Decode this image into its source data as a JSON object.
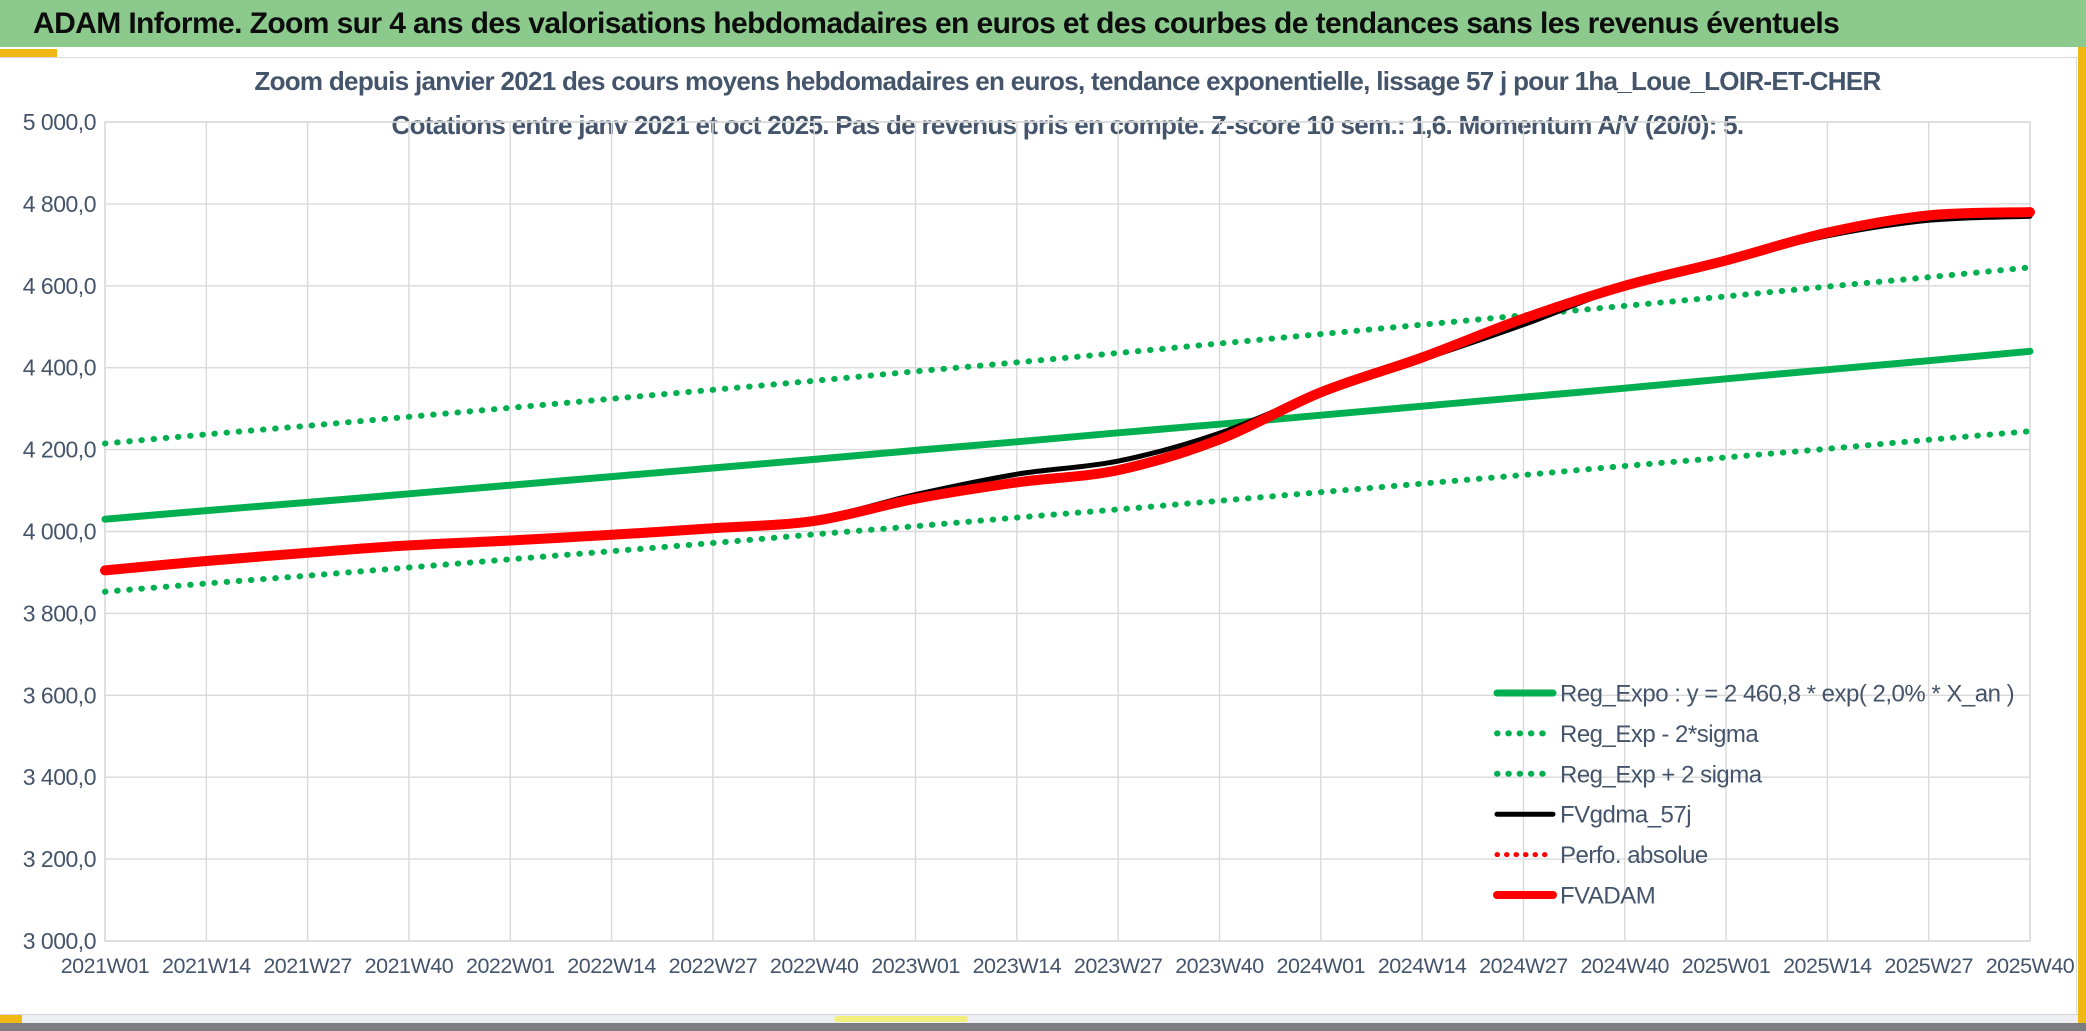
{
  "header": {
    "title": "ADAM Informe. Zoom sur 4 ans des valorisations hebdomadaires en euros et des courbes de tendances sans les revenus éventuels"
  },
  "colors": {
    "header_bg": "#8CC98C",
    "gold": "#EFB815",
    "yellow": "#F3EF7E",
    "text": "#44546A",
    "grid": "#D9D9D9",
    "green": "#00B050",
    "red": "#FF0000",
    "black": "#000000"
  },
  "chart_data": {
    "type": "line",
    "title": "Zoom depuis janvier 2021 des cours moyens hebdomadaires en euros, tendance exponentielle, lissage 57 j pour 1ha_Loue_LOIR-ET-CHER",
    "subtitle": "Cotations entre janv 2021 et oct 2025. Pas de revenus pris en compte. Z-score 10 sem.: 1,6. Momentum A/V (20/0): 5.",
    "xlabel": "",
    "ylabel": "",
    "ylim": [
      3000,
      5000
    ],
    "grid": true,
    "legend_position": "inside-lower-right",
    "y_ticks": [
      "5 000,0",
      "4 800,0",
      "4 600,0",
      "4 400,0",
      "4 200,0",
      "4 000,0",
      "3 800,0",
      "3 600,0",
      "3 400,0",
      "3 200,0",
      "3 000,0"
    ],
    "x_categories": [
      "2021W01",
      "2021W14",
      "2021W27",
      "2021W40",
      "2022W01",
      "2022W14",
      "2022W27",
      "2022W40",
      "2023W01",
      "2023W14",
      "2023W27",
      "2023W40",
      "2024W01",
      "2024W14",
      "2024W27",
      "2024W40",
      "2025W01",
      "2025W14",
      "2025W27",
      "2025W40"
    ],
    "series": [
      {
        "name": "Reg_Expo : y = 2 460,8 * exp( 2,0% *  X_an )",
        "color": "#00B050",
        "style": "solid",
        "width": 7,
        "values": [
          4030,
          4051,
          4071,
          4092,
          4113,
          4134,
          4155,
          4176,
          4198,
          4219,
          4241,
          4262,
          4284,
          4306,
          4328,
          4350,
          4373,
          4395,
          4417,
          4440
        ]
      },
      {
        "name": "Reg_Exp - 2*sigma",
        "color": "#00B050",
        "style": "dotted",
        "width": 6,
        "values": [
          3853,
          3873,
          3892,
          3912,
          3932,
          3952,
          3972,
          3993,
          4013,
          4034,
          4054,
          4075,
          4096,
          4117,
          4138,
          4160,
          4181,
          4202,
          4224,
          4245
        ]
      },
      {
        "name": "Reg_Exp + 2 sigma",
        "color": "#00B050",
        "style": "dotted",
        "width": 6,
        "values": [
          4215,
          4237,
          4258,
          4280,
          4302,
          4324,
          4346,
          4368,
          4391,
          4413,
          4436,
          4459,
          4482,
          4505,
          4528,
          4551,
          4574,
          4598,
          4621,
          4645
        ]
      },
      {
        "name": "FVgdma_57j",
        "color": "#000000",
        "style": "solid",
        "width": 5,
        "values": [
          3905,
          3928,
          3948,
          3966,
          3978,
          3992,
          4010,
          4030,
          4090,
          4140,
          4172,
          4240,
          4340,
          4420,
          4505,
          4598,
          4660,
          4722,
          4760,
          4770
        ]
      },
      {
        "name": "Perfo. absolue",
        "color": "#FF0000",
        "style": "dotted",
        "width": 5,
        "values": [
          3905,
          3928,
          3948,
          3966,
          3978,
          3992,
          4008,
          4026,
          4080,
          4120,
          4150,
          4225,
          4340,
          4425,
          4520,
          4600,
          4662,
          4730,
          4772,
          4780
        ]
      },
      {
        "name": "FVADAM",
        "color": "#FF0000",
        "style": "solid",
        "width": 10,
        "values": [
          3905,
          3928,
          3948,
          3966,
          3978,
          3992,
          4008,
          4026,
          4080,
          4120,
          4150,
          4225,
          4340,
          4425,
          4520,
          4600,
          4662,
          4730,
          4772,
          4780
        ]
      }
    ]
  }
}
